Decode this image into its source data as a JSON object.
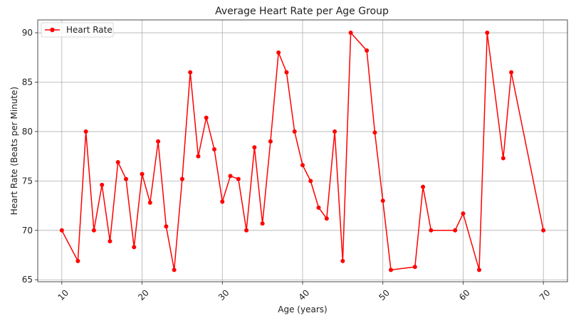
{
  "chart_data": {
    "type": "line",
    "title": "Average Heart Rate per Age Group",
    "xlabel": "Age (years)",
    "ylabel": "Heart Rate (Beats per Minute)",
    "xlim": [
      7,
      73
    ],
    "ylim": [
      64.8,
      91.3
    ],
    "x_ticks": [
      10,
      20,
      30,
      40,
      50,
      60,
      70
    ],
    "y_ticks": [
      65,
      70,
      75,
      80,
      85,
      90
    ],
    "grid": true,
    "legend_position": "top-left",
    "series": [
      {
        "name": "Heart Rate",
        "color": "#ff0000",
        "marker": "circle",
        "points": [
          [
            10,
            70
          ],
          [
            12,
            66.9
          ],
          [
            13,
            80
          ],
          [
            14,
            70
          ],
          [
            15,
            74.6
          ],
          [
            16,
            68.9
          ],
          [
            17,
            76.9
          ],
          [
            18,
            75.2
          ],
          [
            19,
            68.3
          ],
          [
            20,
            75.7
          ],
          [
            21,
            72.8
          ],
          [
            22,
            79
          ],
          [
            23,
            70.4
          ],
          [
            24,
            66
          ],
          [
            25,
            75.2
          ],
          [
            26,
            86
          ],
          [
            27,
            77.5
          ],
          [
            28,
            81.4
          ],
          [
            29,
            78.2
          ],
          [
            30,
            72.9
          ],
          [
            31,
            75.5
          ],
          [
            32,
            75.2
          ],
          [
            33,
            70
          ],
          [
            34,
            78.4
          ],
          [
            35,
            70.7
          ],
          [
            36,
            79
          ],
          [
            37,
            88
          ],
          [
            38,
            86
          ],
          [
            39,
            80
          ],
          [
            40,
            76.6
          ],
          [
            41,
            75
          ],
          [
            42,
            72.3
          ],
          [
            43,
            71.2
          ],
          [
            44,
            80
          ],
          [
            45,
            66.9
          ],
          [
            46,
            90
          ],
          [
            48,
            88.2
          ],
          [
            49,
            79.9
          ],
          [
            50,
            73
          ],
          [
            51,
            66
          ],
          [
            54,
            66.3
          ],
          [
            55,
            74.4
          ],
          [
            56,
            70
          ],
          [
            59,
            70
          ],
          [
            60,
            71.7
          ],
          [
            62,
            66
          ],
          [
            63,
            90
          ],
          [
            65,
            77.3
          ],
          [
            66,
            86
          ],
          [
            70,
            70
          ]
        ]
      }
    ]
  }
}
